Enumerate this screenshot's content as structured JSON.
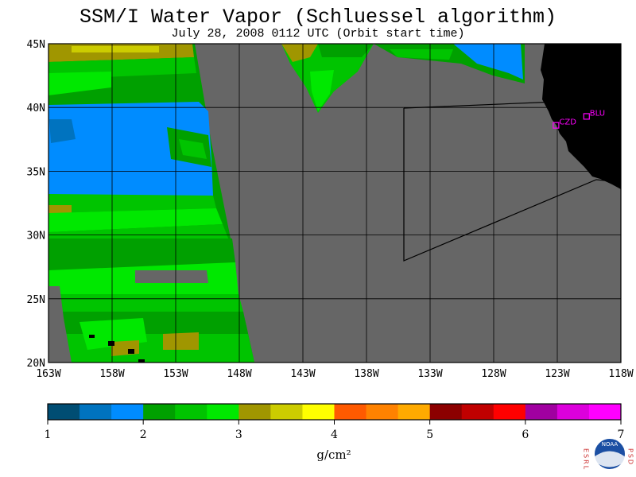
{
  "title": "SSM/I Water Vapor (Schluessel algorithm)",
  "subtitle": "July 28, 2008  0112 UTC  (Orbit start time)",
  "map": {
    "lon_labels": [
      "163W",
      "158W",
      "153W",
      "148W",
      "143W",
      "138W",
      "133W",
      "128W",
      "123W",
      "118W"
    ],
    "lat_labels": [
      "45N",
      "40N",
      "35N",
      "30N",
      "25N",
      "20N"
    ],
    "lon_range": [
      -163,
      -118
    ],
    "lat_range": [
      20,
      45
    ],
    "stations": [
      {
        "label": "CZD",
        "lon": -123.1,
        "lat": 38.6
      },
      {
        "label": "BLU",
        "lon": -120.7,
        "lat": 39.3
      }
    ],
    "colors": {
      "no_data": "#666666",
      "land": "#000000",
      "grid": "#000000",
      "station": "#ff00ff"
    }
  },
  "colorbar": {
    "tick_labels": [
      "1",
      "2",
      "3",
      "4",
      "5",
      "6",
      "7"
    ],
    "units": "g/cm²",
    "range": [
      1,
      7
    ],
    "colors": [
      "#004d73",
      "#0073bf",
      "#008cff",
      "#00a000",
      "#00c400",
      "#00e800",
      "#a09600",
      "#cccc00",
      "#ffff00",
      "#ff5a00",
      "#ff8200",
      "#ffaa00",
      "#8c0000",
      "#c00000",
      "#ff0000",
      "#a000a0",
      "#dc00dc",
      "#ff00ff"
    ]
  },
  "logo": {
    "org_left": "ESRL",
    "org_right": "PSD",
    "org_name": "NOAA"
  }
}
